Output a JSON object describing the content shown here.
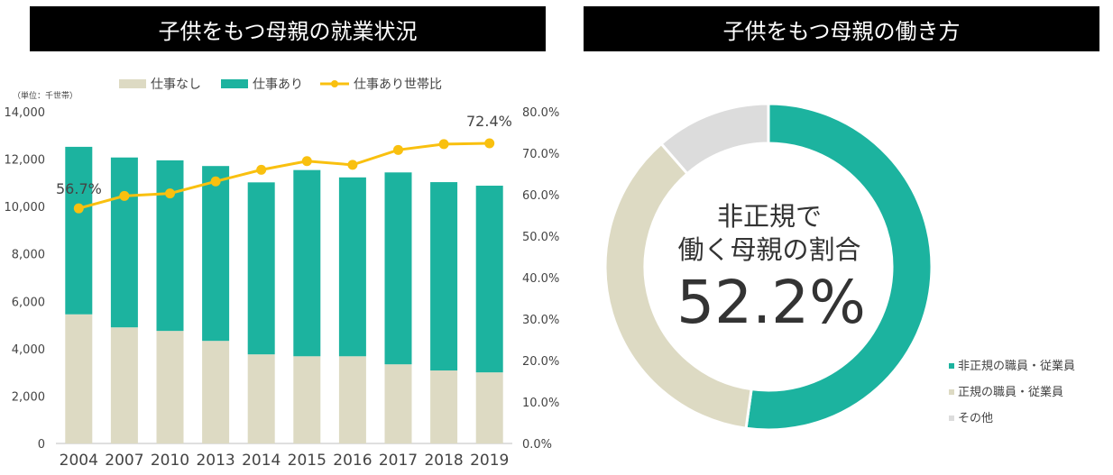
{
  "titles": {
    "left": "子供をもつ母親の就業状況",
    "right": "子供をもつ母親の働き方"
  },
  "chart_data": [
    {
      "type": "bar",
      "subtype": "stacked bar with line on secondary axis",
      "title": "子供をもつ母親の就業状況",
      "unit_label": "（単位：千世帯）",
      "categories": [
        "2004",
        "2007",
        "2010",
        "2013",
        "2014",
        "2015",
        "2016",
        "2017",
        "2018",
        "2019"
      ],
      "series": [
        {
          "name": "仕事なし",
          "kind": "bar",
          "color": "#dddac3",
          "values": [
            5450,
            4900,
            4750,
            4330,
            3760,
            3680,
            3680,
            3340,
            3080,
            3000
          ]
        },
        {
          "name": "仕事あり",
          "kind": "bar",
          "color": "#1cb39f",
          "values": [
            7070,
            7170,
            7200,
            7380,
            7260,
            7860,
            7550,
            8100,
            7950,
            7880
          ]
        },
        {
          "name": "仕事あり世帯比",
          "kind": "line",
          "axis": "right",
          "color": "#f9c00f",
          "values": [
            56.7,
            59.7,
            60.3,
            63.2,
            66.0,
            68.1,
            67.2,
            70.8,
            72.2,
            72.4
          ]
        }
      ],
      "ylim": [
        0,
        14000
      ],
      "yticks": [
        "0",
        "2,000",
        "4,000",
        "6,000",
        "8,000",
        "10,000",
        "12,000",
        "14,000"
      ],
      "y2lim": [
        0,
        80
      ],
      "y2ticks": [
        "0.0%",
        "10.0%",
        "20.0%",
        "30.0%",
        "40.0%",
        "50.0%",
        "60.0%",
        "70.0%",
        "80.0%"
      ],
      "annotations": [
        "56.7%",
        "72.4%"
      ],
      "legend_position": "top",
      "grid": false
    },
    {
      "type": "pie",
      "subtype": "donut",
      "title": "子供をもつ母親の働き方",
      "center_text": [
        "非正規で",
        "働く母親の割合",
        "52.2%"
      ],
      "slices": [
        {
          "label": "非正規の職員・従業員",
          "value": 52.2,
          "color": "#1cb39f"
        },
        {
          "label": "正規の職員・従業員",
          "value": 36.4,
          "color": "#dddac3"
        },
        {
          "label": "その他",
          "value": 11.4,
          "color": "#dcdcdc"
        }
      ],
      "legend_position": "bottom-right"
    }
  ]
}
